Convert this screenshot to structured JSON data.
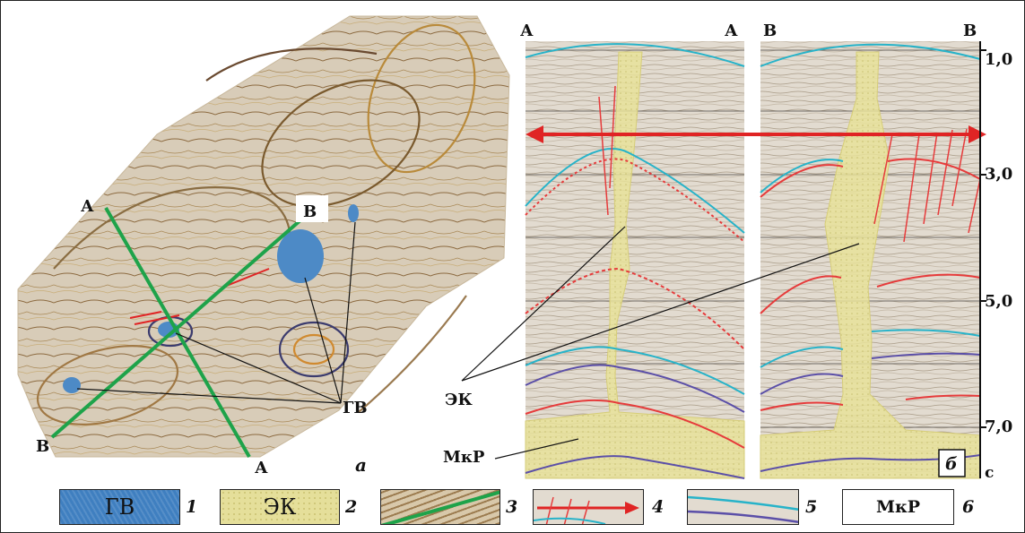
{
  "map": {
    "profile_a_start": "А",
    "profile_a_end": "А",
    "profile_b_start": "В",
    "profile_b_end": "В",
    "gv_label": "ГВ",
    "panel_label": "а"
  },
  "sections": {
    "left_start": "А",
    "left_end": "А",
    "right_start": "В",
    "right_end": "В",
    "ek_label": "ЭК",
    "mkr_label": "МкР",
    "panel_label": "б",
    "time_ticks": [
      "1,0",
      "3,0",
      "5,0",
      "7,0"
    ],
    "time_unit": "с"
  },
  "legend": [
    {
      "num": "1",
      "text": "ГВ"
    },
    {
      "num": "2",
      "text": "ЭК"
    },
    {
      "num": "3",
      "text": ""
    },
    {
      "num": "4",
      "text": ""
    },
    {
      "num": "5",
      "text": ""
    },
    {
      "num": "6",
      "text": "МкР"
    }
  ],
  "colors": {
    "frame": "#222222",
    "seismic_bg": "#ddd6cb",
    "salt_fill": "#e9e39c",
    "profile_line": "#1ea34a",
    "gas_blue": "#4d8ac6",
    "horizon_cyan": "#27b3c9",
    "horizon_red": "#e63b3b",
    "horizon_purple": "#5b4fa8",
    "arrow_red": "#e02424"
  }
}
